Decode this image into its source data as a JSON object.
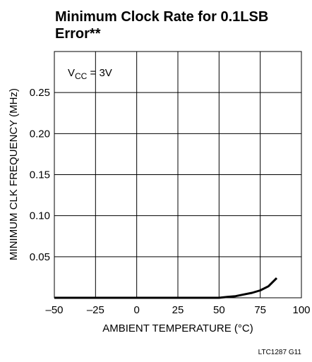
{
  "chart_data": {
    "type": "line",
    "title": [
      "Minimum Clock Rate for 0.1LSB",
      "Error**"
    ],
    "annotation": {
      "base": "V",
      "sub": "CC",
      "rest": " = 3V"
    },
    "xlabel": "AMBIENT TEMPERATURE (°C)",
    "ylabel": "MINIMUM CLK FREQUENCY (MHz)",
    "footnote": "LTC1287 G11",
    "x": [
      -50,
      -25,
      0,
      25,
      50,
      55,
      60,
      65,
      70,
      75,
      80,
      85
    ],
    "series": [
      {
        "color": "#000000",
        "values": [
          0,
          0,
          0,
          0,
          0,
          0.001,
          0.002,
          0.004,
          0.006,
          0.009,
          0.014,
          0.024
        ]
      }
    ],
    "xlim": [
      -50,
      100
    ],
    "ylim": [
      0,
      0.3
    ],
    "xticks": [
      {
        "value": -50,
        "label": "–50"
      },
      {
        "value": -25,
        "label": "–25"
      },
      0,
      25,
      50,
      75,
      100
    ],
    "yticks": [
      0.05,
      {
        "value": 0.1,
        "label": "0.10"
      },
      0.15,
      {
        "value": 0.2,
        "label": "0.20"
      },
      0.25
    ],
    "grid": true
  }
}
